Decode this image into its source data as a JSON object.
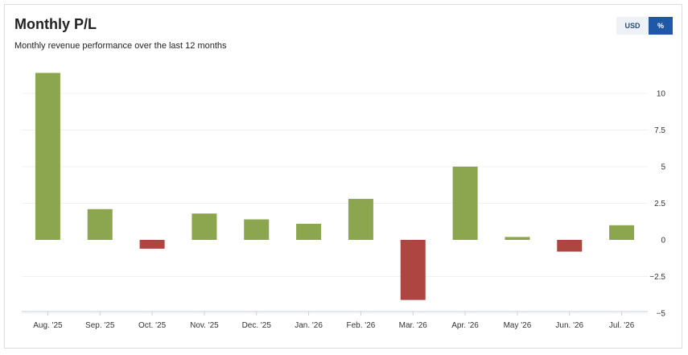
{
  "header": {
    "title": "Monthly P/L",
    "subtitle": "Monthly revenue performance over the last 12 months"
  },
  "toggle": {
    "options": [
      {
        "label": "USD",
        "active": false
      },
      {
        "label": "%",
        "active": true
      }
    ]
  },
  "colors": {
    "positive": "#8ba64f",
    "negative": "#ad4641",
    "active_toggle": "#1f58a6"
  },
  "chart_data": {
    "type": "bar",
    "categories": [
      "Aug. '25",
      "Sep. '25",
      "Oct. '25",
      "Nov. '25",
      "Dec. '25",
      "Jan. '26",
      "Feb. '26",
      "Mar. '26",
      "Apr. '26",
      "May '26",
      "Jun. '26",
      "Jul. '26"
    ],
    "values": [
      11.4,
      2.1,
      -0.6,
      1.8,
      1.4,
      1.1,
      2.8,
      -4.1,
      5.0,
      0.2,
      -0.8,
      1.0
    ],
    "y_ticks": [
      10,
      7.5,
      5,
      2.5,
      0,
      -2.5,
      -5
    ],
    "y_tick_labels": [
      "10",
      "7.5",
      "5",
      "2.5",
      "0",
      "−2.5",
      "−5"
    ],
    "ylim": [
      -5,
      12
    ],
    "y_axis_side": "right",
    "grid": true,
    "legend": "none"
  }
}
